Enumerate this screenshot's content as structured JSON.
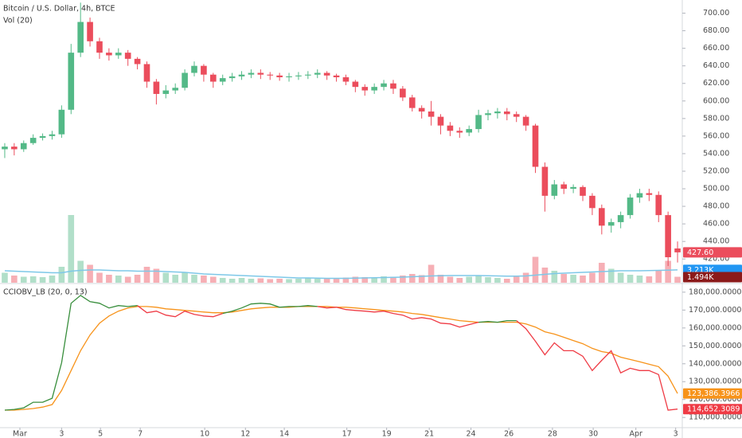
{
  "chart_data": [
    {
      "type": "candlestick",
      "title": "Bitcoin / U.S. Dollar, 4h, BTCE",
      "open": [
        545,
        548,
        545,
        552,
        558,
        560,
        562,
        590,
        655,
        690,
        668,
        655,
        652,
        655,
        648,
        642,
        622,
        608,
        612,
        615,
        632,
        640,
        630,
        622,
        626,
        628,
        630,
        632,
        630,
        629,
        627,
        628,
        629,
        630,
        632,
        629,
        627,
        622,
        616,
        612,
        616,
        620,
        614,
        604,
        592,
        588,
        582,
        572,
        566,
        564,
        568,
        584,
        586,
        588,
        585,
        582,
        572,
        525,
        492,
        505,
        500,
        502,
        492,
        478,
        458,
        462,
        470,
        490,
        495,
        493,
        470,
        432
      ],
      "high": [
        552,
        552,
        555,
        562,
        563,
        566,
        595,
        665,
        712,
        695,
        672,
        660,
        660,
        658,
        650,
        645,
        625,
        618,
        620,
        636,
        645,
        642,
        632,
        630,
        632,
        634,
        636,
        636,
        633,
        632,
        632,
        633,
        634,
        636,
        634,
        631,
        630,
        624,
        619,
        620,
        624,
        624,
        617,
        607,
        595,
        600,
        585,
        576,
        570,
        572,
        590,
        590,
        592,
        592,
        588,
        584,
        574,
        530,
        510,
        508,
        505,
        504,
        495,
        482,
        466,
        474,
        494,
        500,
        500,
        497,
        474,
        440
      ],
      "low": [
        535,
        538,
        542,
        550,
        555,
        556,
        558,
        585,
        650,
        662,
        648,
        646,
        648,
        640,
        636,
        615,
        596,
        603,
        608,
        612,
        628,
        622,
        615,
        618,
        622,
        624,
        626,
        625,
        624,
        623,
        622,
        624,
        625,
        626,
        624,
        622,
        618,
        610,
        606,
        608,
        612,
        608,
        600,
        588,
        580,
        572,
        562,
        560,
        558,
        560,
        564,
        578,
        580,
        578,
        576,
        566,
        518,
        474,
        488,
        494,
        495,
        486,
        470,
        448,
        450,
        455,
        466,
        484,
        486,
        462,
        412,
        416
      ],
      "close": [
        548,
        545,
        552,
        558,
        560,
        562,
        590,
        655,
        690,
        668,
        655,
        652,
        655,
        648,
        642,
        622,
        608,
        612,
        615,
        632,
        640,
        630,
        622,
        626,
        628,
        630,
        632,
        630,
        629,
        627,
        628,
        629,
        630,
        632,
        629,
        627,
        622,
        616,
        612,
        616,
        620,
        614,
        604,
        592,
        588,
        582,
        572,
        566,
        564,
        568,
        584,
        586,
        588,
        585,
        582,
        572,
        525,
        492,
        505,
        500,
        502,
        492,
        478,
        458,
        462,
        470,
        490,
        495,
        493,
        470,
        422,
        427.6
      ],
      "last_label": "427.60",
      "up_color": "#53b987",
      "down_color": "#eb4d5c",
      "xlim": [
        0,
        72
      ],
      "ylim": [
        393,
        715
      ],
      "yticks": [
        {
          "value": 420,
          "label": "420.00"
        },
        {
          "value": 440,
          "label": "440.00"
        },
        {
          "value": 460,
          "label": "460.00"
        },
        {
          "value": 480,
          "label": "480.00"
        },
        {
          "value": 500,
          "label": "500.00"
        },
        {
          "value": 520,
          "label": "520.00"
        },
        {
          "value": 540,
          "label": "540.00"
        },
        {
          "value": 560,
          "label": "560.00"
        },
        {
          "value": 580,
          "label": "580.00"
        },
        {
          "value": 600,
          "label": "600.00"
        },
        {
          "value": 620,
          "label": "620.00"
        },
        {
          "value": 640,
          "label": "640.00"
        },
        {
          "value": 660,
          "label": "660.00"
        },
        {
          "value": 680,
          "label": "680.00"
        },
        {
          "value": 700,
          "label": "700.00"
        }
      ],
      "volume": {
        "name": "Vol (20)",
        "values": [
          2500,
          1800,
          1500,
          1600,
          1400,
          1800,
          4000,
          17000,
          5500,
          4500,
          2500,
          2000,
          1800,
          1500,
          2000,
          4000,
          3500,
          2500,
          2000,
          2500,
          2000,
          1800,
          1500,
          1200,
          1000,
          1200,
          1000,
          1100,
          900,
          1000,
          900,
          1000,
          1100,
          1000,
          1200,
          1100,
          1300,
          1500,
          1400,
          1200,
          1600,
          1500,
          1800,
          2200,
          1900,
          4500,
          2000,
          1500,
          1200,
          1500,
          1800,
          1400,
          1200,
          1000,
          1500,
          2500,
          6500,
          3800,
          3000,
          2200,
          2000,
          1800,
          2500,
          5000,
          3500,
          2500,
          2000,
          1800,
          1600,
          3000,
          5500,
          1494
        ],
        "ma": [
          3000,
          2900,
          2800,
          2700,
          2600,
          2500,
          2500,
          2900,
          3100,
          3200,
          3200,
          3100,
          3000,
          3000,
          2900,
          2900,
          2900,
          2800,
          2700,
          2600,
          2400,
          2200,
          2100,
          2000,
          1900,
          1800,
          1700,
          1600,
          1500,
          1400,
          1300,
          1200,
          1200,
          1150,
          1100,
          1100,
          1100,
          1150,
          1200,
          1250,
          1300,
          1350,
          1400,
          1500,
          1600,
          1700,
          1750,
          1800,
          1800,
          1800,
          1800,
          1750,
          1700,
          1650,
          1650,
          1700,
          1900,
          2100,
          2300,
          2400,
          2500,
          2600,
          2700,
          2800,
          2900,
          3000,
          3000,
          3000,
          3050,
          3100,
          3150,
          3213
        ],
        "ylim": [
          0,
          20000
        ],
        "ma_color": "#7ec8e8",
        "ma_label_color": "#2196f3",
        "last_label": "1.494K",
        "ma_last_label": "3.213K"
      }
    },
    {
      "type": "line",
      "title": "CCIOBV_LB (20, 0, 13)",
      "series": [
        {
          "above_color": "#388e3c",
          "below_color": "#ef3b45",
          "values": [
            114100,
            114500,
            115400,
            118500,
            118500,
            120700,
            140600,
            173800,
            178200,
            174700,
            173800,
            171200,
            172500,
            172000,
            172500,
            168500,
            169400,
            167200,
            166300,
            169400,
            167600,
            166700,
            166300,
            168100,
            169400,
            171200,
            173400,
            173800,
            173400,
            171600,
            172000,
            172000,
            172500,
            172000,
            171200,
            171600,
            170300,
            169800,
            169400,
            168900,
            169400,
            168100,
            167200,
            165000,
            165800,
            165000,
            162700,
            162300,
            160500,
            161900,
            163200,
            163600,
            163200,
            164100,
            164100,
            159600,
            152600,
            145000,
            151700,
            147300,
            147300,
            144200,
            136200,
            141900,
            147300,
            134900,
            137500,
            136200,
            136200,
            134000,
            114100,
            114652.3089
          ],
          "last_label": "114,652.3089"
        },
        {
          "color": "#f7931a",
          "values": [
            114100,
            114100,
            114500,
            115000,
            115800,
            117200,
            125100,
            136200,
            147300,
            156100,
            162700,
            166700,
            169400,
            171200,
            172000,
            172000,
            171600,
            170700,
            170300,
            169800,
            169400,
            168900,
            168500,
            168500,
            168900,
            169800,
            170700,
            171200,
            171600,
            171600,
            171600,
            172000,
            172000,
            172000,
            172000,
            171600,
            171600,
            171200,
            170700,
            170300,
            169800,
            169400,
            168900,
            168100,
            167600,
            166700,
            165800,
            165000,
            164100,
            163600,
            163200,
            163200,
            163200,
            163200,
            163200,
            162300,
            160500,
            157900,
            156600,
            154800,
            153000,
            151200,
            148600,
            146800,
            145900,
            143700,
            142400,
            141100,
            139700,
            138400,
            133100,
            123386.3966
          ],
          "last_label": "123,386.3966"
        }
      ],
      "xlim": [
        0,
        72
      ],
      "xticks": [
        {
          "value": 2.1,
          "label": "Mar"
        },
        {
          "value": 6.5,
          "label": "3"
        },
        {
          "value": 10.6,
          "label": "5"
        },
        {
          "value": 14.8,
          "label": "7"
        },
        {
          "value": 21.6,
          "label": "10"
        },
        {
          "value": 25.9,
          "label": "12"
        },
        {
          "value": 30,
          "label": "14"
        },
        {
          "value": 36.6,
          "label": "17"
        },
        {
          "value": 40.8,
          "label": "19"
        },
        {
          "value": 45.3,
          "label": "21"
        },
        {
          "value": 49.7,
          "label": "24"
        },
        {
          "value": 53.7,
          "label": "26"
        },
        {
          "value": 58.3,
          "label": "28"
        },
        {
          "value": 62.6,
          "label": "30"
        },
        {
          "value": 67.1,
          "label": "Apr"
        },
        {
          "value": 71.3,
          "label": "3"
        }
      ],
      "ylim": [
        104300,
        184400
      ],
      "yticks": [
        {
          "value": 110000,
          "label": "110,000.0000"
        },
        {
          "value": 120000,
          "label": "120,000.0000"
        },
        {
          "value": 130000,
          "label": "130,000.0000"
        },
        {
          "value": 140000,
          "label": "140,000.0000"
        },
        {
          "value": 150000,
          "label": "150,000.0000"
        },
        {
          "value": 160000,
          "label": "160,000.0000"
        },
        {
          "value": 170000,
          "label": "170,000.0000"
        },
        {
          "value": 180000,
          "label": "180,000.0000"
        }
      ]
    }
  ]
}
